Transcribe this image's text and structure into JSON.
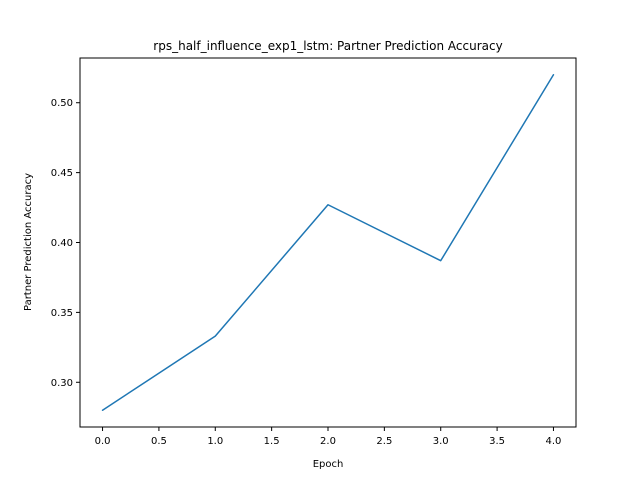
{
  "chart_data": {
    "type": "line",
    "title": "rps_half_influence_exp1_lstm: Partner Prediction Accuracy",
    "xlabel": "Epoch",
    "ylabel": "Partner Prediction Accuracy",
    "xlim": [
      -0.2,
      4.2
    ],
    "ylim": [
      0.268,
      0.532
    ],
    "xticks": [
      0.0,
      0.5,
      1.0,
      1.5,
      2.0,
      2.5,
      3.0,
      3.5,
      4.0
    ],
    "xtick_labels": [
      "0.0",
      "0.5",
      "1.0",
      "1.5",
      "2.0",
      "2.5",
      "3.0",
      "3.5",
      "4.0"
    ],
    "yticks": [
      0.3,
      0.35,
      0.4,
      0.45,
      0.5
    ],
    "ytick_labels": [
      "0.30",
      "0.35",
      "0.40",
      "0.45",
      "0.50"
    ],
    "grid": false,
    "legend": "none",
    "series": [
      {
        "x": [
          0,
          1,
          2,
          3,
          4
        ],
        "values": [
          0.28,
          0.333,
          0.427,
          0.387,
          0.52
        ],
        "color": "#1f77b4"
      }
    ]
  }
}
